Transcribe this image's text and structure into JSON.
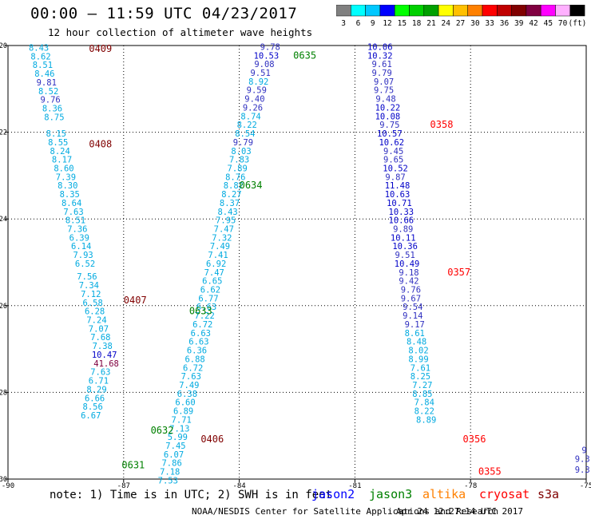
{
  "header": {
    "title": "00:00 – 11:59 UTC 04/23/2017",
    "subtitle": "12 hour collection of altimeter wave heights"
  },
  "legend_scale": {
    "labels": [
      "3",
      "6",
      "9",
      "12",
      "15",
      "18",
      "21",
      "24",
      "27",
      "30",
      "33",
      "36",
      "39",
      "42",
      "45",
      "70",
      "(ft)"
    ],
    "colors": [
      "#808080",
      "#00ffff",
      "#00c8ff",
      "#0000ff",
      "#00ff00",
      "#00d000",
      "#00a000",
      "#ffff00",
      "#ffc000",
      "#ff8000",
      "#ff0000",
      "#c00000",
      "#800000",
      "#800040",
      "#ff00ff",
      "#ffb0ff",
      "#000000"
    ]
  },
  "footer": {
    "note": "note: 1) Time is in UTC; 2) SWH is in feet",
    "satellites": [
      {
        "name": "jason2",
        "color": "#0000ff"
      },
      {
        "name": "jason3",
        "color": "#008000"
      },
      {
        "name": "altika",
        "color": "#ff8000"
      },
      {
        "name": "cryosat",
        "color": "#ff0000"
      },
      {
        "name": "s3a",
        "color": "#800000"
      }
    ],
    "credit": "NOAA/NESDIS Center for Satellite Applications and Research",
    "timestamp": "Apr 24 12:27:14 UTC 2017"
  },
  "chart_data": {
    "type": "scatter",
    "title": "00:00 – 11:59 UTC 04/23/2017",
    "subtitle": "12 hour collection of altimeter wave heights",
    "xlim": [
      -90,
      -75
    ],
    "ylim": [
      -30,
      -20
    ],
    "x_ticks": [
      "-90",
      "-87",
      "-84",
      "-81",
      "-78",
      "-75"
    ],
    "y_ticks": [
      "-20",
      "-22",
      "-24",
      "-26",
      "-28",
      "-30"
    ],
    "grid": "dotted",
    "units": "ft",
    "series": [
      {
        "name": "s3a",
        "track": "descending west",
        "color_rule": "by value",
        "points": [
          {
            "x": -89.2,
            "y": -20.12,
            "v": "8.43"
          },
          {
            "x": -89.15,
            "y": -20.32,
            "v": "8.62"
          },
          {
            "x": -89.1,
            "y": -20.52,
            "v": "8.51"
          },
          {
            "x": -89.05,
            "y": -20.72,
            "v": "8.46"
          },
          {
            "x": -89.0,
            "y": -20.92,
            "v": "9.81"
          },
          {
            "x": -88.95,
            "y": -21.12,
            "v": "8.52"
          },
          {
            "x": -88.9,
            "y": -21.32,
            "v": "9.76"
          },
          {
            "x": -88.85,
            "y": -21.52,
            "v": "8.36"
          },
          {
            "x": -88.8,
            "y": -21.72,
            "v": "8.75"
          },
          {
            "x": -88.75,
            "y": -22.1,
            "v": "8.15"
          },
          {
            "x": -88.7,
            "y": -22.3,
            "v": "8.55"
          },
          {
            "x": -88.65,
            "y": -22.5,
            "v": "8.24"
          },
          {
            "x": -88.6,
            "y": -22.7,
            "v": "8.17"
          },
          {
            "x": -88.55,
            "y": -22.9,
            "v": "8.60"
          },
          {
            "x": -88.5,
            "y": -23.1,
            "v": "7.39"
          },
          {
            "x": -88.45,
            "y": -23.3,
            "v": "8.30"
          },
          {
            "x": -88.4,
            "y": -23.5,
            "v": "8.35"
          },
          {
            "x": -88.35,
            "y": -23.7,
            "v": "8.64"
          },
          {
            "x": -88.3,
            "y": -23.9,
            "v": "7.63"
          },
          {
            "x": -88.25,
            "y": -24.1,
            "v": "8.51"
          },
          {
            "x": -88.2,
            "y": -24.3,
            "v": "7.36"
          },
          {
            "x": -88.15,
            "y": -24.5,
            "v": "6.39"
          },
          {
            "x": -88.1,
            "y": -24.7,
            "v": "6.14"
          },
          {
            "x": -88.05,
            "y": -24.9,
            "v": "7.93"
          },
          {
            "x": -88.0,
            "y": -25.1,
            "v": "6.52"
          },
          {
            "x": -87.95,
            "y": -25.4,
            "v": "7.56"
          },
          {
            "x": -87.9,
            "y": -25.6,
            "v": "7.34"
          },
          {
            "x": -87.85,
            "y": -25.8,
            "v": "7.12"
          },
          {
            "x": -87.8,
            "y": -26.0,
            "v": "6.58"
          },
          {
            "x": -87.75,
            "y": -26.2,
            "v": "6.28"
          },
          {
            "x": -87.7,
            "y": -26.4,
            "v": "7.24"
          },
          {
            "x": -87.65,
            "y": -26.6,
            "v": "7.07"
          },
          {
            "x": -87.6,
            "y": -26.8,
            "v": "7.68"
          },
          {
            "x": -87.55,
            "y": -27.0,
            "v": "7.38"
          },
          {
            "x": -87.5,
            "y": -27.2,
            "v": "10.47"
          },
          {
            "x": -87.45,
            "y": -27.4,
            "v": "41.68"
          },
          {
            "x": -87.6,
            "y": -27.6,
            "v": "7.63"
          },
          {
            "x": -87.65,
            "y": -27.8,
            "v": "6.71"
          },
          {
            "x": -87.7,
            "y": -28.0,
            "v": "8.29"
          },
          {
            "x": -87.75,
            "y": -28.2,
            "v": "6.66"
          },
          {
            "x": -87.8,
            "y": -28.4,
            "v": "8.56"
          },
          {
            "x": -87.85,
            "y": -28.6,
            "v": "6.67"
          }
        ]
      },
      {
        "name": "jason3",
        "track": "ascending",
        "color_rule": "by value",
        "points": [
          {
            "x": -83.2,
            "y": -20.1,
            "v": "9.78"
          },
          {
            "x": -83.3,
            "y": -20.3,
            "v": "10.53"
          },
          {
            "x": -83.35,
            "y": -20.5,
            "v": "9.08"
          },
          {
            "x": -83.45,
            "y": -20.7,
            "v": "9.51"
          },
          {
            "x": -83.5,
            "y": -20.9,
            "v": "8.92"
          },
          {
            "x": -83.55,
            "y": -21.1,
            "v": "9.59"
          },
          {
            "x": -83.6,
            "y": -21.3,
            "v": "9.40"
          },
          {
            "x": -83.65,
            "y": -21.5,
            "v": "9.26"
          },
          {
            "x": -83.7,
            "y": -21.7,
            "v": "8.74"
          },
          {
            "x": -83.8,
            "y": -21.9,
            "v": "8.22"
          },
          {
            "x": -83.85,
            "y": -22.1,
            "v": "8.54"
          },
          {
            "x": -83.9,
            "y": -22.3,
            "v": "9.79"
          },
          {
            "x": -83.95,
            "y": -22.5,
            "v": "8.03"
          },
          {
            "x": -84.0,
            "y": -22.7,
            "v": "7.83"
          },
          {
            "x": -84.05,
            "y": -22.9,
            "v": "7.89"
          },
          {
            "x": -84.1,
            "y": -23.1,
            "v": "8.76"
          },
          {
            "x": -84.15,
            "y": -23.3,
            "v": "8.82"
          },
          {
            "x": -84.2,
            "y": -23.5,
            "v": "8.27"
          },
          {
            "x": -84.25,
            "y": -23.7,
            "v": "8.37"
          },
          {
            "x": -84.3,
            "y": -23.9,
            "v": "8.43"
          },
          {
            "x": -84.35,
            "y": -24.1,
            "v": "7.95"
          },
          {
            "x": -84.4,
            "y": -24.3,
            "v": "7.47"
          },
          {
            "x": -84.45,
            "y": -24.5,
            "v": "7.32"
          },
          {
            "x": -84.5,
            "y": -24.7,
            "v": "7.49"
          },
          {
            "x": -84.55,
            "y": -24.9,
            "v": "7.41"
          },
          {
            "x": -84.6,
            "y": -25.1,
            "v": "6.92"
          },
          {
            "x": -84.65,
            "y": -25.3,
            "v": "7.47"
          },
          {
            "x": -84.7,
            "y": -25.5,
            "v": "6.65"
          },
          {
            "x": -84.75,
            "y": -25.7,
            "v": "6.62"
          },
          {
            "x": -84.8,
            "y": -25.9,
            "v": "6.77"
          },
          {
            "x": -84.85,
            "y": -26.1,
            "v": "6.63"
          },
          {
            "x": -84.9,
            "y": -26.3,
            "v": "7.22"
          },
          {
            "x": -84.95,
            "y": -26.5,
            "v": "6.72"
          },
          {
            "x": -85.0,
            "y": -26.7,
            "v": "6.63"
          },
          {
            "x": -85.05,
            "y": -26.9,
            "v": "6.63"
          },
          {
            "x": -85.1,
            "y": -27.1,
            "v": "6.36"
          },
          {
            "x": -85.15,
            "y": -27.3,
            "v": "6.88"
          },
          {
            "x": -85.2,
            "y": -27.5,
            "v": "6.72"
          },
          {
            "x": -85.25,
            "y": -27.7,
            "v": "7.63"
          },
          {
            "x": -85.3,
            "y": -27.9,
            "v": "7.49"
          },
          {
            "x": -85.35,
            "y": -28.1,
            "v": "6.38"
          },
          {
            "x": -85.4,
            "y": -28.3,
            "v": "6.60"
          },
          {
            "x": -85.45,
            "y": -28.5,
            "v": "6.89"
          },
          {
            "x": -85.5,
            "y": -28.7,
            "v": "7.71"
          },
          {
            "x": -85.55,
            "y": -28.9,
            "v": "7.13"
          },
          {
            "x": -85.6,
            "y": -29.1,
            "v": "5.99"
          },
          {
            "x": -85.65,
            "y": -29.3,
            "v": "7.45"
          },
          {
            "x": -85.7,
            "y": -29.5,
            "v": "6.07"
          },
          {
            "x": -85.75,
            "y": -29.7,
            "v": "7.86"
          },
          {
            "x": -85.8,
            "y": -29.9,
            "v": "7.18"
          },
          {
            "x": -85.85,
            "y": -30.1,
            "v": "7.53"
          }
        ]
      },
      {
        "name": "jason2",
        "track": "descending",
        "color_rule": "by value",
        "points": [
          {
            "x": -80.35,
            "y": -20.1,
            "v": "10.06"
          },
          {
            "x": -80.35,
            "y": -20.3,
            "v": "10.32"
          },
          {
            "x": -80.3,
            "y": -20.5,
            "v": "9.61"
          },
          {
            "x": -80.3,
            "y": -20.7,
            "v": "9.79"
          },
          {
            "x": -80.25,
            "y": -20.9,
            "v": "9.07"
          },
          {
            "x": -80.25,
            "y": -21.1,
            "v": "9.75"
          },
          {
            "x": -80.2,
            "y": -21.3,
            "v": "9.48"
          },
          {
            "x": -80.15,
            "y": -21.5,
            "v": "10.22"
          },
          {
            "x": -80.15,
            "y": -21.7,
            "v": "10.08"
          },
          {
            "x": -80.1,
            "y": -21.9,
            "v": "9.75"
          },
          {
            "x": -80.1,
            "y": -22.1,
            "v": "10.57"
          },
          {
            "x": -80.05,
            "y": -22.3,
            "v": "10.62"
          },
          {
            "x": -80.0,
            "y": -22.5,
            "v": "9.45"
          },
          {
            "x": -80.0,
            "y": -22.7,
            "v": "9.65"
          },
          {
            "x": -79.95,
            "y": -22.9,
            "v": "10.52"
          },
          {
            "x": -79.95,
            "y": -23.1,
            "v": "9.87"
          },
          {
            "x": -79.9,
            "y": -23.3,
            "v": "11.48"
          },
          {
            "x": -79.9,
            "y": -23.5,
            "v": "10.63"
          },
          {
            "x": -79.85,
            "y": -23.7,
            "v": "10.71"
          },
          {
            "x": -79.8,
            "y": -23.9,
            "v": "10.33"
          },
          {
            "x": -79.8,
            "y": -24.1,
            "v": "10.66"
          },
          {
            "x": -79.75,
            "y": -24.3,
            "v": "9.89"
          },
          {
            "x": -79.75,
            "y": -24.5,
            "v": "10.11"
          },
          {
            "x": -79.7,
            "y": -24.7,
            "v": "10.36"
          },
          {
            "x": -79.7,
            "y": -24.9,
            "v": "9.51"
          },
          {
            "x": -79.65,
            "y": -25.1,
            "v": "10.49"
          },
          {
            "x": -79.6,
            "y": -25.3,
            "v": "9.18"
          },
          {
            "x": -79.6,
            "y": -25.5,
            "v": "9.42"
          },
          {
            "x": -79.55,
            "y": -25.7,
            "v": "9.76"
          },
          {
            "x": -79.55,
            "y": -25.9,
            "v": "9.67"
          },
          {
            "x": -79.5,
            "y": -26.1,
            "v": "9.54"
          },
          {
            "x": -79.5,
            "y": -26.3,
            "v": "9.14"
          },
          {
            "x": -79.45,
            "y": -26.5,
            "v": "9.17"
          },
          {
            "x": -79.45,
            "y": -26.7,
            "v": "8.61"
          },
          {
            "x": -79.4,
            "y": -26.9,
            "v": "8.48"
          },
          {
            "x": -79.35,
            "y": -27.1,
            "v": "8.02"
          },
          {
            "x": -79.35,
            "y": -27.3,
            "v": "8.99"
          },
          {
            "x": -79.3,
            "y": -27.5,
            "v": "7.61"
          },
          {
            "x": -79.3,
            "y": -27.7,
            "v": "8.25"
          },
          {
            "x": -79.25,
            "y": -27.9,
            "v": "7.27"
          },
          {
            "x": -79.25,
            "y": -28.1,
            "v": "8.85"
          },
          {
            "x": -79.2,
            "y": -28.3,
            "v": "7.84"
          },
          {
            "x": -79.2,
            "y": -28.5,
            "v": "8.22"
          },
          {
            "x": -79.15,
            "y": -28.7,
            "v": "8.89"
          }
        ]
      },
      {
        "name": "edge",
        "track": "partial",
        "color_rule": "by value",
        "points": [
          {
            "x": -75.05,
            "y": -29.4,
            "v": "9"
          },
          {
            "x": -75.1,
            "y": -29.6,
            "v": "9.3"
          },
          {
            "x": -75.1,
            "y": -29.85,
            "v": "9.3"
          }
        ]
      }
    ],
    "time_labels": [
      {
        "text": "0409",
        "x": -87.9,
        "y": -20.15,
        "color": "#800000"
      },
      {
        "text": "0408",
        "x": -87.9,
        "y": -22.35,
        "color": "#800000"
      },
      {
        "text": "0407",
        "x": -87.0,
        "y": -25.95,
        "color": "#800000"
      },
      {
        "text": "0406",
        "x": -85.0,
        "y": -29.15,
        "color": "#800000"
      },
      {
        "text": "0635",
        "x": -82.6,
        "y": -20.3,
        "color": "#008000"
      },
      {
        "text": "0634",
        "x": -84.0,
        "y": -23.3,
        "color": "#008000"
      },
      {
        "text": "0633",
        "x": -85.3,
        "y": -26.2,
        "color": "#008000"
      },
      {
        "text": "0632",
        "x": -86.3,
        "y": -28.95,
        "color": "#008000"
      },
      {
        "text": "0631",
        "x": -87.05,
        "y": -29.75,
        "color": "#008000"
      },
      {
        "text": "0358",
        "x": -79.05,
        "y": -21.9,
        "color": "#ff0000"
      },
      {
        "text": "0357",
        "x": -78.6,
        "y": -25.3,
        "color": "#ff0000"
      },
      {
        "text": "0356",
        "x": -78.2,
        "y": -29.15,
        "color": "#ff0000"
      },
      {
        "text": "0355",
        "x": -77.8,
        "y": -29.9,
        "color": "#ff0000"
      }
    ]
  }
}
